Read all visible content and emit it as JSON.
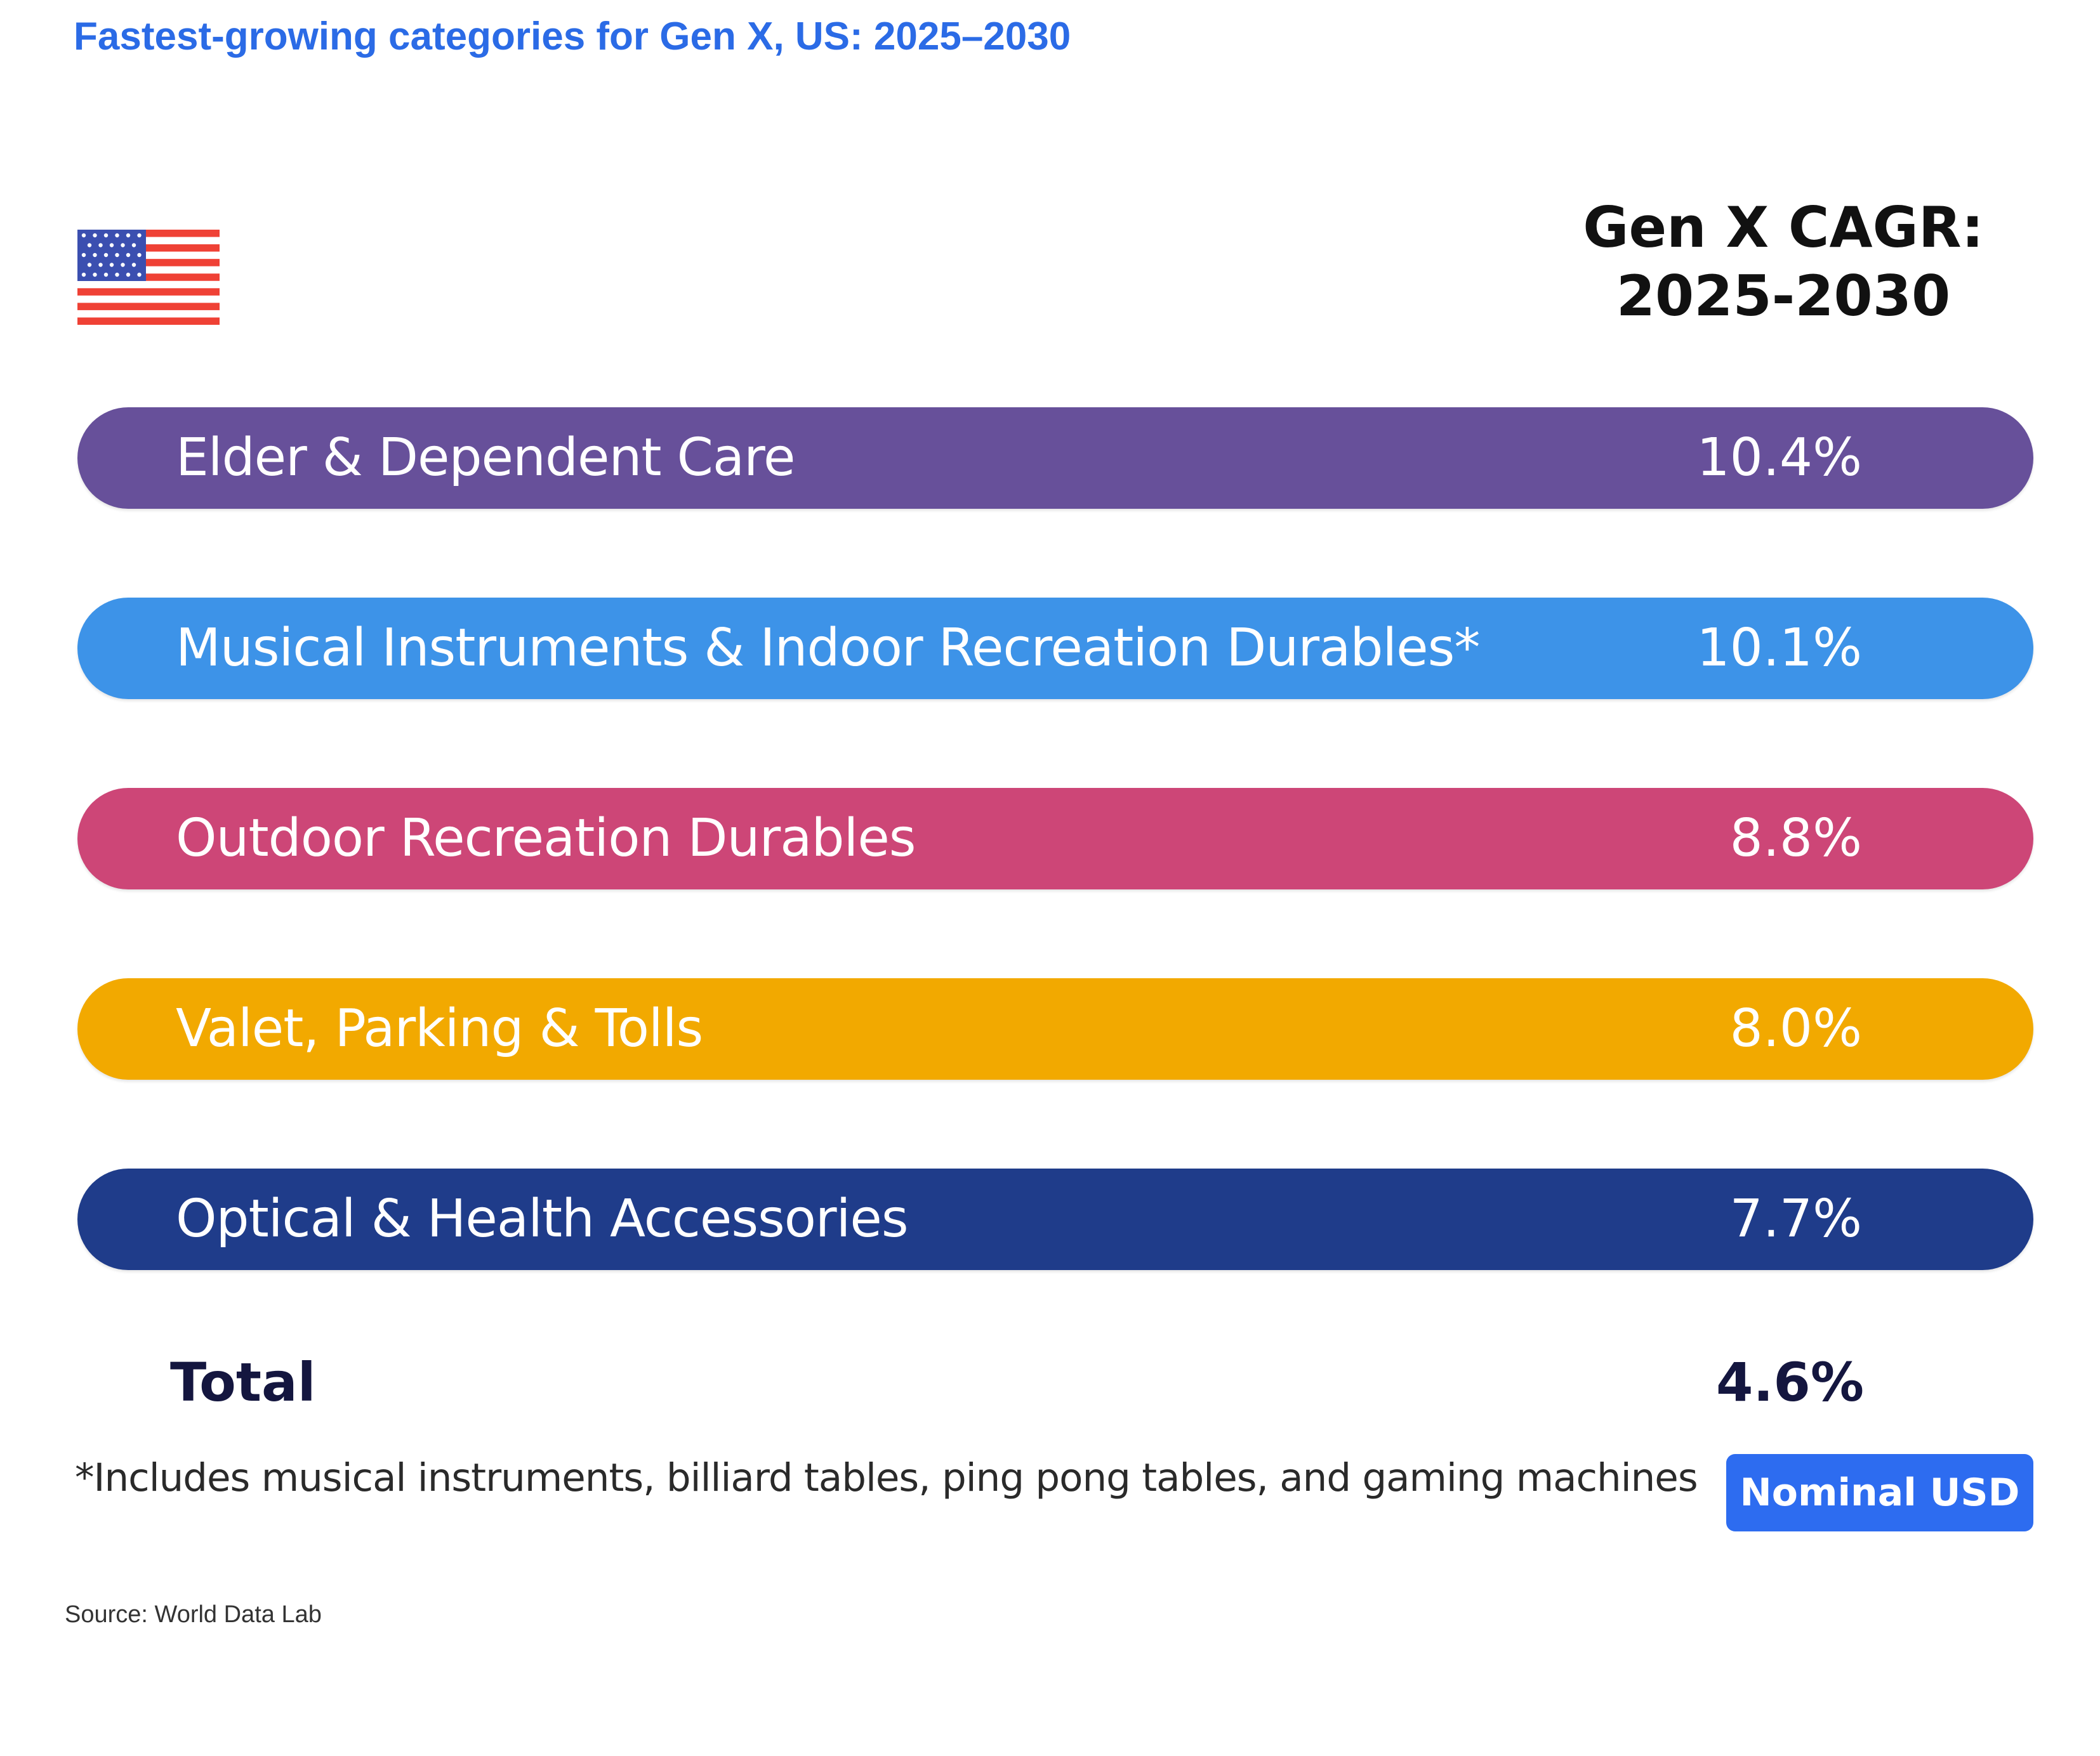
{
  "title": "Fastest-growing categories for Gen X, US: 2025–2030",
  "flag_icon": "us-flag-icon",
  "column_header": {
    "line1": "Gen X CAGR:",
    "line2": "2025-2030"
  },
  "chart_data": {
    "type": "table",
    "value_header": "Gen X CAGR: 2025-2030",
    "rows": [
      {
        "category": "Elder & Dependent Care",
        "cagr_percent": 10.4,
        "label": "10.4%",
        "color": "#67509a"
      },
      {
        "category": "Musical Instruments & Indoor Recreation Durables*",
        "cagr_percent": 10.1,
        "label": "10.1%",
        "color": "#3d93e8"
      },
      {
        "category": "Outdoor Recreation Durables",
        "cagr_percent": 8.8,
        "label": "8.8%",
        "color": "#cd4677"
      },
      {
        "category": "Valet, Parking & Tolls",
        "cagr_percent": 8.0,
        "label": "8.0%",
        "color": "#f2a900"
      },
      {
        "category": "Optical & Health Accessories",
        "cagr_percent": 7.7,
        "label": "7.7%",
        "color": "#1f3c8a"
      }
    ],
    "total": {
      "label": "Total",
      "cagr_percent": 4.6,
      "value_label": "4.6%"
    }
  },
  "footnote": "*Includes musical instruments, billiard tables, ping pong tables, and gaming machines",
  "badge": "Nominal USD",
  "source": "Source: World Data Lab"
}
